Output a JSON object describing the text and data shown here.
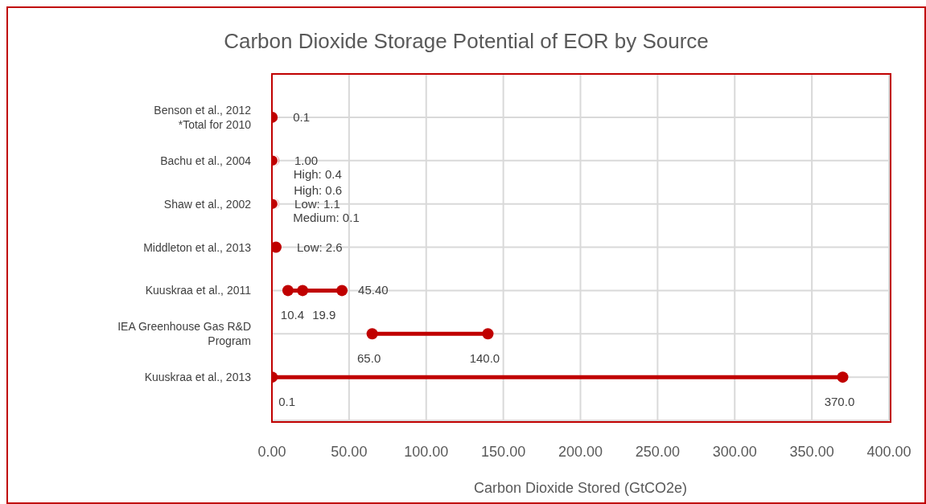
{
  "chart_data": {
    "type": "scatter",
    "orientation": "horizontal",
    "title": "Carbon Dioxide Storage Potential of EOR by Source",
    "xlabel": "Carbon Dioxide Stored (GtCO2e)",
    "categories": [
      "Benson et al., 2012\n*Total for 2010",
      "Bachu et al., 2004",
      "Shaw et al., 2002",
      "Middleton et al., 2013",
      "Kuuskraa et al., 2011",
      "IEA Greenhouse Gas R&D Program",
      "Kuuskraa et al., 2013"
    ],
    "xlim": [
      0,
      400
    ],
    "xticks": [
      {
        "value": 0,
        "label": "0.00"
      },
      {
        "value": 50,
        "label": "50.00"
      },
      {
        "value": 100,
        "label": "100.00"
      },
      {
        "value": 150,
        "label": "150.00"
      },
      {
        "value": 200,
        "label": "200.00"
      },
      {
        "value": 250,
        "label": "250.00"
      },
      {
        "value": 300,
        "label": "300.00"
      },
      {
        "value": 350,
        "label": "350.00"
      },
      {
        "value": 400,
        "label": "400.00"
      }
    ],
    "grid": true,
    "marker": "circle",
    "series": [
      {
        "color": "#c00000",
        "values": [
          0.1,
          1.0,
          1.1,
          2.6,
          10.4,
          65.0,
          0.1
        ],
        "value_labels": [
          "0.1",
          "1.00",
          "Low: 1.1",
          "Low: 2.6",
          "10.4",
          "65.0",
          "0.1"
        ]
      },
      {
        "color": "#c00000",
        "values": [
          null,
          null,
          0.1,
          null,
          19.9,
          null,
          null
        ],
        "value_labels": [
          null,
          null,
          "Medium: 0.1",
          null,
          "19.9",
          null,
          null
        ]
      },
      {
        "color": "#c00000",
        "values": [
          null,
          0.4,
          0.6,
          null,
          45.4,
          140.0,
          370.0
        ],
        "value_labels": [
          null,
          "High: 0.4",
          "High: 0.6",
          null,
          "45.40",
          "140.0",
          "370.0"
        ]
      }
    ]
  }
}
